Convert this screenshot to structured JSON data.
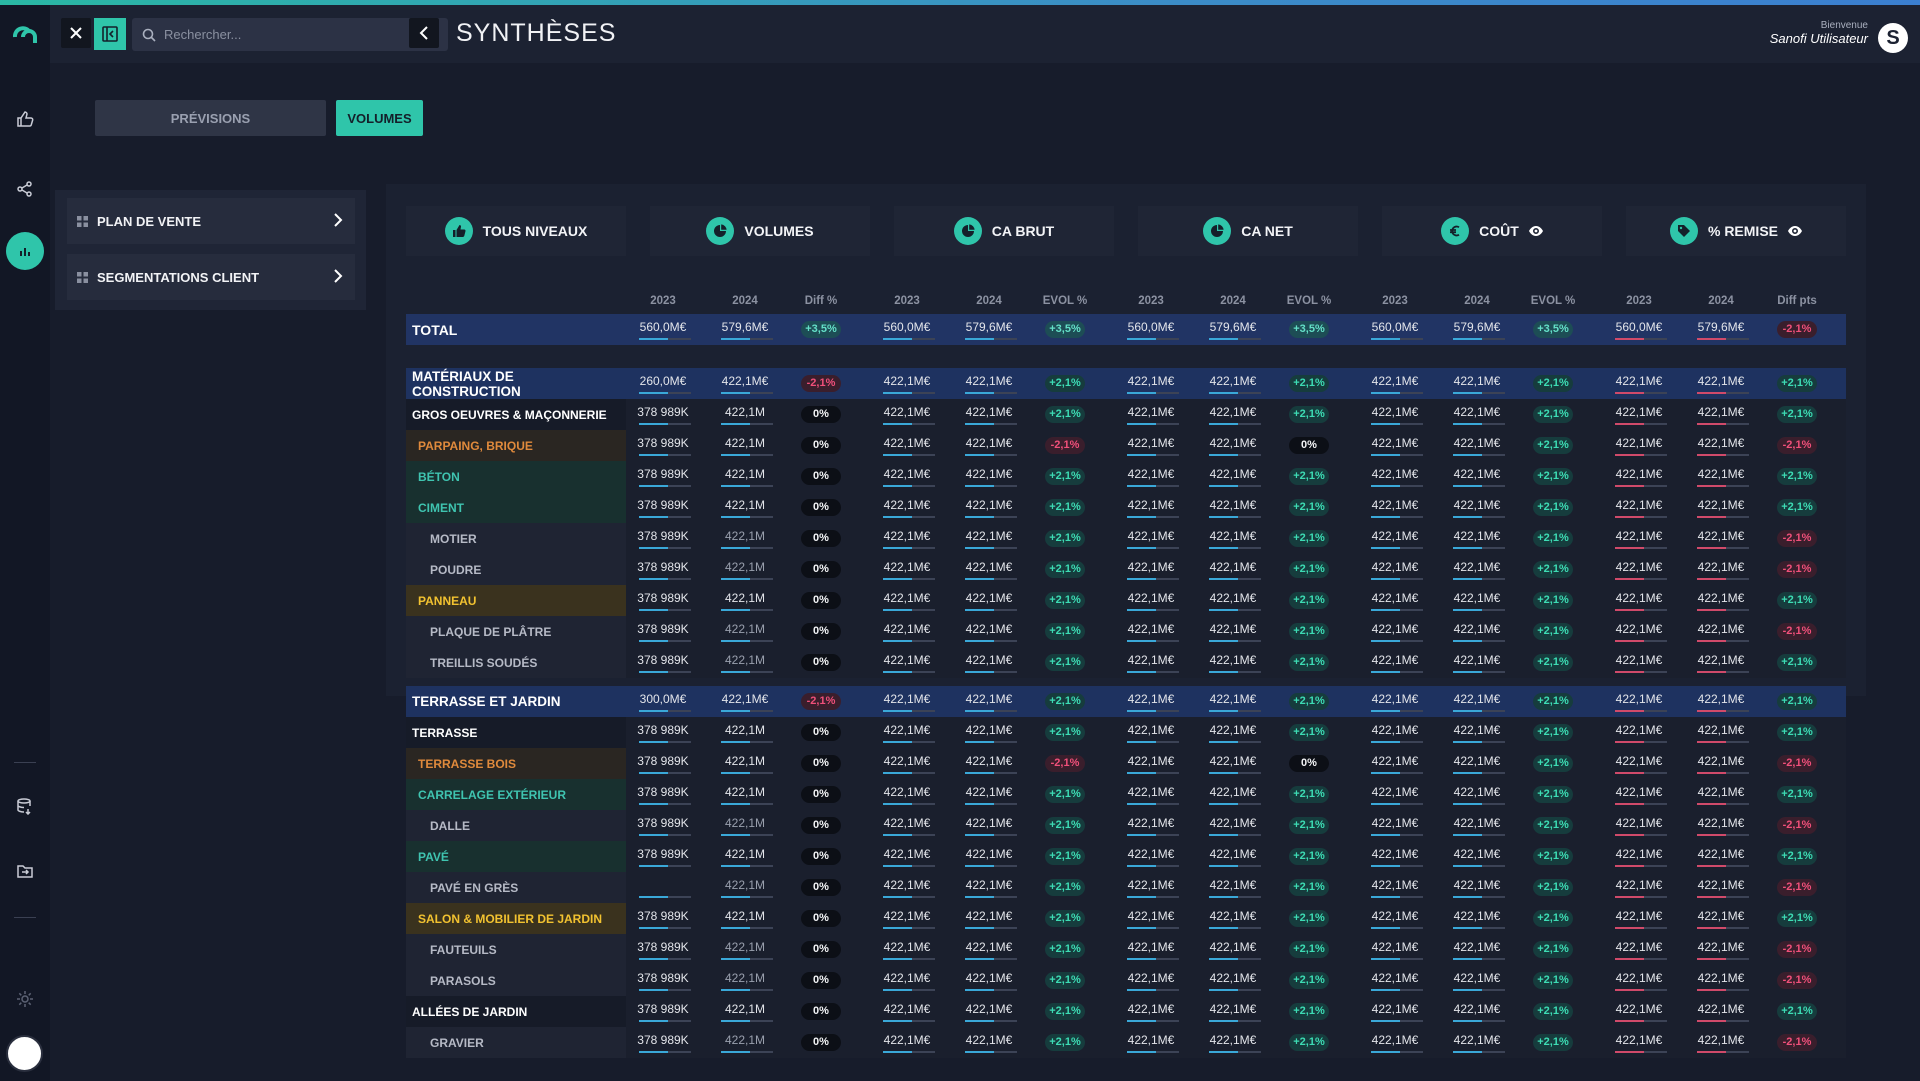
{
  "header": {
    "search_placeholder": "Rechercher...",
    "title": "SYNTHÈSES",
    "welcome": "Bienvenue",
    "user_name": "Sanofi Utilisateur"
  },
  "tabs": {
    "previsions": "PRÉVISIONS",
    "volumes": "VOLUMES"
  },
  "left_nav": {
    "plan_de_vente": "PLAN DE VENTE",
    "segmentations": "SEGMENTATIONS CLIENT"
  },
  "cards": [
    {
      "label": "TOUS NIVEAUX",
      "icon": "thumbs-up-icon"
    },
    {
      "label": "VOLUMES",
      "icon": "pie-icon"
    },
    {
      "label": "CA BRUT",
      "icon": "pie-icon"
    },
    {
      "label": "CA NET",
      "icon": "pie-icon"
    },
    {
      "label": "COÛT",
      "icon": "euro-icon"
    },
    {
      "label": "% REMISE",
      "icon": "tag-icon"
    }
  ],
  "column_headers": [
    "2023",
    "2024",
    "Diff %",
    "2023",
    "2024",
    "EVOL %",
    "2023",
    "2024",
    "EVOL %",
    "2023",
    "2024",
    "EVOL %",
    "2023",
    "2024",
    "Diff pts"
  ],
  "rows": [
    {
      "label": "TOTAL",
      "type": "total",
      "vol": [
        "560,0M€",
        "579,6M€"
      ],
      "diff": "+3,5%",
      "groups": [
        [
          "560,0M€",
          "579,6M€",
          "+3,5%"
        ],
        [
          "560,0M€",
          "579,6M€",
          "+3,5%"
        ],
        [
          "560,0M€",
          "579,6M€",
          "+3,5%"
        ],
        [
          "560,0M€",
          "579,6M€",
          "-2,1%"
        ]
      ]
    },
    {
      "label": "MATÉRIAUX DE CONSTRUCTION",
      "type": "group",
      "vol": [
        "260,0M€",
        "422,1M€"
      ],
      "diff": "-2,1%",
      "groups": [
        [
          "422,1M€",
          "422,1M€",
          "+2,1%"
        ],
        [
          "422,1M€",
          "422,1M€",
          "+2,1%"
        ],
        [
          "422,1M€",
          "422,1M€",
          "+2,1%"
        ],
        [
          "422,1M€",
          "422,1M€",
          "+2,1%"
        ]
      ]
    },
    {
      "label": "GROS OEUVRES & MAÇONNERIE",
      "type": "sub",
      "vol": [
        "378 989K",
        "422,1M"
      ],
      "diff": "0%",
      "groups": [
        [
          "422,1M€",
          "422,1M€",
          "+2,1%"
        ],
        [
          "422,1M€",
          "422,1M€",
          "+2,1%"
        ],
        [
          "422,1M€",
          "422,1M€",
          "+2,1%"
        ],
        [
          "422,1M€",
          "422,1M€",
          "+2,1%"
        ]
      ]
    },
    {
      "label": "PARPAING, BRIQUE",
      "type": "orange",
      "vol": [
        "378 989K",
        "422,1M"
      ],
      "diff": "0%",
      "groups": [
        [
          "422,1M€",
          "422,1M€",
          "-2,1%"
        ],
        [
          "422,1M€",
          "422,1M€",
          "0%"
        ],
        [
          "422,1M€",
          "422,1M€",
          "+2,1%"
        ],
        [
          "422,1M€",
          "422,1M€",
          "-2,1%"
        ]
      ]
    },
    {
      "label": "BÉTON",
      "type": "teal",
      "vol": [
        "378 989K",
        "422,1M"
      ],
      "diff": "0%",
      "groups": [
        [
          "422,1M€",
          "422,1M€",
          "+2,1%"
        ],
        [
          "422,1M€",
          "422,1M€",
          "+2,1%"
        ],
        [
          "422,1M€",
          "422,1M€",
          "+2,1%"
        ],
        [
          "422,1M€",
          "422,1M€",
          "+2,1%"
        ]
      ]
    },
    {
      "label": "CIMENT",
      "type": "teal",
      "vol": [
        "378 989K",
        "422,1M"
      ],
      "diff": "0%",
      "groups": [
        [
          "422,1M€",
          "422,1M€",
          "+2,1%"
        ],
        [
          "422,1M€",
          "422,1M€",
          "+2,1%"
        ],
        [
          "422,1M€",
          "422,1M€",
          "+2,1%"
        ],
        [
          "422,1M€",
          "422,1M€",
          "+2,1%"
        ]
      ]
    },
    {
      "label": "MOTIER",
      "type": "leaf",
      "vol": [
        "378 989K",
        "422,1M"
      ],
      "diff": "0%",
      "groups": [
        [
          "422,1M€",
          "422,1M€",
          "+2,1%"
        ],
        [
          "422,1M€",
          "422,1M€",
          "+2,1%"
        ],
        [
          "422,1M€",
          "422,1M€",
          "+2,1%"
        ],
        [
          "422,1M€",
          "422,1M€",
          "-2,1%"
        ]
      ]
    },
    {
      "label": "POUDRE",
      "type": "leaf",
      "vol": [
        "378 989K",
        "422,1M"
      ],
      "diff": "0%",
      "groups": [
        [
          "422,1M€",
          "422,1M€",
          "+2,1%"
        ],
        [
          "422,1M€",
          "422,1M€",
          "+2,1%"
        ],
        [
          "422,1M€",
          "422,1M€",
          "+2,1%"
        ],
        [
          "422,1M€",
          "422,1M€",
          "-2,1%"
        ]
      ]
    },
    {
      "label": "PANNEAU",
      "type": "yellow",
      "vol": [
        "378 989K",
        "422,1M"
      ],
      "diff": "0%",
      "groups": [
        [
          "422,1M€",
          "422,1M€",
          "+2,1%"
        ],
        [
          "422,1M€",
          "422,1M€",
          "+2,1%"
        ],
        [
          "422,1M€",
          "422,1M€",
          "+2,1%"
        ],
        [
          "422,1M€",
          "422,1M€",
          "+2,1%"
        ]
      ]
    },
    {
      "label": "PLAQUE DE PLÂTRE",
      "type": "leaf",
      "vol": [
        "378 989K",
        "422,1M"
      ],
      "diff": "0%",
      "groups": [
        [
          "422,1M€",
          "422,1M€",
          "+2,1%"
        ],
        [
          "422,1M€",
          "422,1M€",
          "+2,1%"
        ],
        [
          "422,1M€",
          "422,1M€",
          "+2,1%"
        ],
        [
          "422,1M€",
          "422,1M€",
          "-2,1%"
        ]
      ]
    },
    {
      "label": "TREILLIS SOUDÉS",
      "type": "leaf",
      "vol": [
        "378 989K",
        "422,1M"
      ],
      "diff": "0%",
      "groups": [
        [
          "422,1M€",
          "422,1M€",
          "+2,1%"
        ],
        [
          "422,1M€",
          "422,1M€",
          "+2,1%"
        ],
        [
          "422,1M€",
          "422,1M€",
          "+2,1%"
        ],
        [
          "422,1M€",
          "422,1M€",
          "+2,1%"
        ]
      ]
    },
    {
      "label": "TERRASSE ET JARDIN",
      "type": "group",
      "vol": [
        "300,0M€",
        "422,1M€"
      ],
      "diff": "-2,1%",
      "groups": [
        [
          "422,1M€",
          "422,1M€",
          "+2,1%"
        ],
        [
          "422,1M€",
          "422,1M€",
          "+2,1%"
        ],
        [
          "422,1M€",
          "422,1M€",
          "+2,1%"
        ],
        [
          "422,1M€",
          "422,1M€",
          "+2,1%"
        ]
      ]
    },
    {
      "label": "TERRASSE",
      "type": "sub",
      "vol": [
        "378 989K",
        "422,1M"
      ],
      "diff": "0%",
      "groups": [
        [
          "422,1M€",
          "422,1M€",
          "+2,1%"
        ],
        [
          "422,1M€",
          "422,1M€",
          "+2,1%"
        ],
        [
          "422,1M€",
          "422,1M€",
          "+2,1%"
        ],
        [
          "422,1M€",
          "422,1M€",
          "+2,1%"
        ]
      ]
    },
    {
      "label": "TERRASSE BOIS",
      "type": "orange",
      "vol": [
        "378 989K",
        "422,1M"
      ],
      "diff": "0%",
      "groups": [
        [
          "422,1M€",
          "422,1M€",
          "-2,1%"
        ],
        [
          "422,1M€",
          "422,1M€",
          "0%"
        ],
        [
          "422,1M€",
          "422,1M€",
          "+2,1%"
        ],
        [
          "422,1M€",
          "422,1M€",
          "-2,1%"
        ]
      ]
    },
    {
      "label": "CARRELAGE EXTÉRIEUR",
      "type": "teal",
      "vol": [
        "378 989K",
        "422,1M"
      ],
      "diff": "0%",
      "groups": [
        [
          "422,1M€",
          "422,1M€",
          "+2,1%"
        ],
        [
          "422,1M€",
          "422,1M€",
          "+2,1%"
        ],
        [
          "422,1M€",
          "422,1M€",
          "+2,1%"
        ],
        [
          "422,1M€",
          "422,1M€",
          "+2,1%"
        ]
      ]
    },
    {
      "label": "DALLE",
      "type": "leaf",
      "vol": [
        "378 989K",
        "422,1M"
      ],
      "diff": "0%",
      "groups": [
        [
          "422,1M€",
          "422,1M€",
          "+2,1%"
        ],
        [
          "422,1M€",
          "422,1M€",
          "+2,1%"
        ],
        [
          "422,1M€",
          "422,1M€",
          "+2,1%"
        ],
        [
          "422,1M€",
          "422,1M€",
          "-2,1%"
        ]
      ]
    },
    {
      "label": "PAVÉ",
      "type": "teal",
      "vol": [
        "378 989K",
        "422,1M"
      ],
      "diff": "0%",
      "groups": [
        [
          "422,1M€",
          "422,1M€",
          "+2,1%"
        ],
        [
          "422,1M€",
          "422,1M€",
          "+2,1%"
        ],
        [
          "422,1M€",
          "422,1M€",
          "+2,1%"
        ],
        [
          "422,1M€",
          "422,1M€",
          "+2,1%"
        ]
      ]
    },
    {
      "label": "PAVÉ EN GRÈS",
      "type": "leaf",
      "vol": [
        "",
        "422,1M"
      ],
      "diff": "0%",
      "groups": [
        [
          "422,1M€",
          "422,1M€",
          "+2,1%"
        ],
        [
          "422,1M€",
          "422,1M€",
          "+2,1%"
        ],
        [
          "422,1M€",
          "422,1M€",
          "+2,1%"
        ],
        [
          "422,1M€",
          "422,1M€",
          "-2,1%"
        ]
      ]
    },
    {
      "label": "SALON & MOBILIER DE JARDIN",
      "type": "yellow",
      "vol": [
        "378 989K",
        "422,1M"
      ],
      "diff": "0%",
      "groups": [
        [
          "422,1M€",
          "422,1M€",
          "+2,1%"
        ],
        [
          "422,1M€",
          "422,1M€",
          "+2,1%"
        ],
        [
          "422,1M€",
          "422,1M€",
          "+2,1%"
        ],
        [
          "422,1M€",
          "422,1M€",
          "+2,1%"
        ]
      ]
    },
    {
      "label": "FAUTEUILS",
      "type": "leaf",
      "vol": [
        "378 989K",
        "422,1M"
      ],
      "diff": "0%",
      "groups": [
        [
          "422,1M€",
          "422,1M€",
          "+2,1%"
        ],
        [
          "422,1M€",
          "422,1M€",
          "+2,1%"
        ],
        [
          "422,1M€",
          "422,1M€",
          "+2,1%"
        ],
        [
          "422,1M€",
          "422,1M€",
          "-2,1%"
        ]
      ]
    },
    {
      "label": "PARASOLS",
      "type": "leaf",
      "vol": [
        "378 989K",
        "422,1M"
      ],
      "diff": "0%",
      "groups": [
        [
          "422,1M€",
          "422,1M€",
          "+2,1%"
        ],
        [
          "422,1M€",
          "422,1M€",
          "+2,1%"
        ],
        [
          "422,1M€",
          "422,1M€",
          "+2,1%"
        ],
        [
          "422,1M€",
          "422,1M€",
          "-2,1%"
        ]
      ]
    },
    {
      "label": "ALLÉES DE JARDIN",
      "type": "sub",
      "vol": [
        "378 989K",
        "422,1M"
      ],
      "diff": "0%",
      "groups": [
        [
          "422,1M€",
          "422,1M€",
          "+2,1%"
        ],
        [
          "422,1M€",
          "422,1M€",
          "+2,1%"
        ],
        [
          "422,1M€",
          "422,1M€",
          "+2,1%"
        ],
        [
          "422,1M€",
          "422,1M€",
          "+2,1%"
        ]
      ]
    },
    {
      "label": "GRAVIER",
      "type": "leaf",
      "vol": [
        "378 989K",
        "422,1M"
      ],
      "diff": "0%",
      "groups": [
        [
          "422,1M€",
          "422,1M€",
          "+2,1%"
        ],
        [
          "422,1M€",
          "422,1M€",
          "+2,1%"
        ],
        [
          "422,1M€",
          "422,1M€",
          "+2,1%"
        ],
        [
          "422,1M€",
          "422,1M€",
          "-2,1%"
        ]
      ]
    }
  ],
  "colors": {
    "accent": "#2fc5aa",
    "positive": "#3ddcb4",
    "negative": "#f0507a",
    "orange": "#e08a3c",
    "teal": "#3fc4b0",
    "yellow": "#f2c230"
  }
}
